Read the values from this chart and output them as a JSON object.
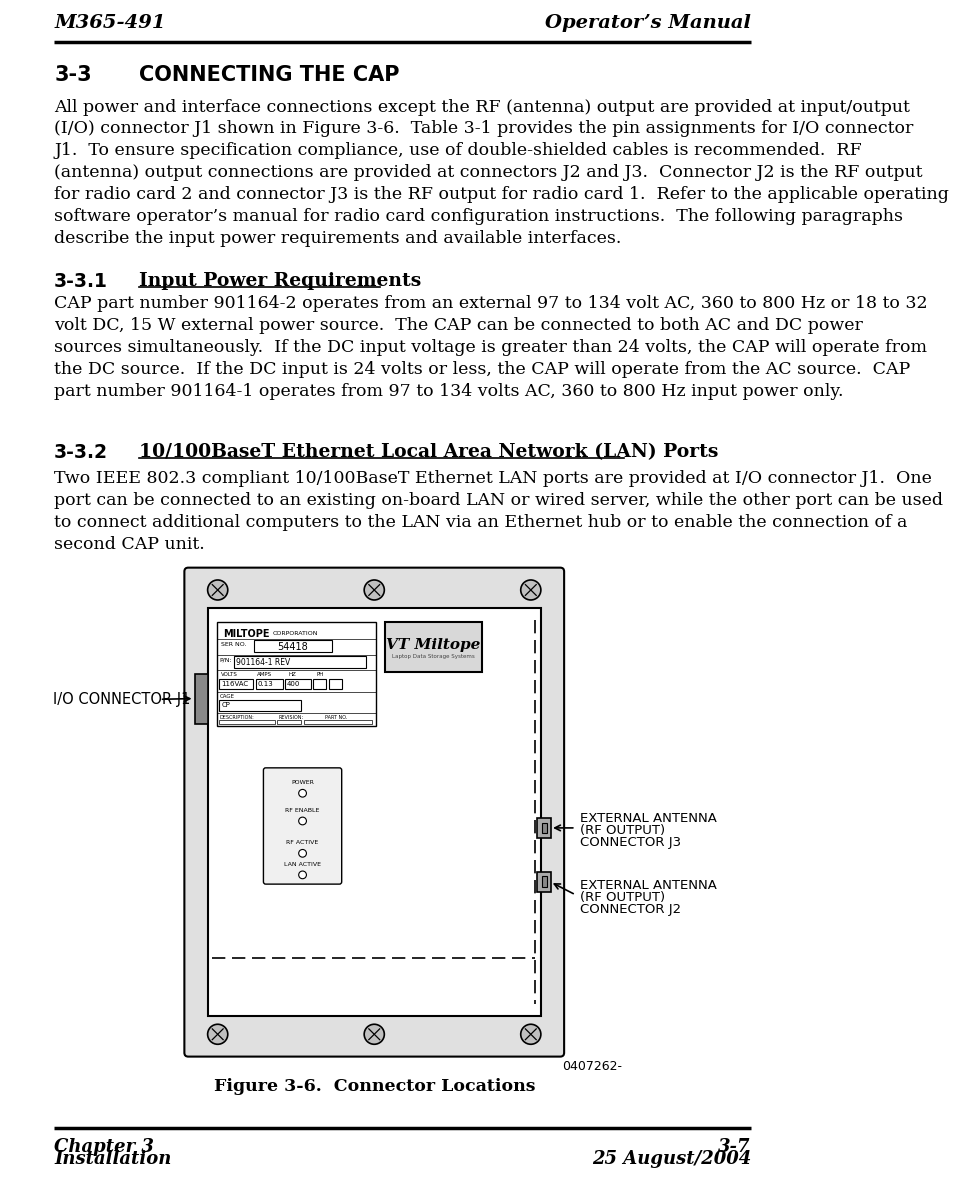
{
  "header_left": "M365-491",
  "header_right": "Operator’s Manual",
  "footer_left_line1": "Chapter 3",
  "footer_left_line2": "Installation",
  "footer_right_line1": "3-7",
  "footer_right_line2": "25 August/2004",
  "body_text_1": "All power and interface connections except the RF (antenna) output are provided at input/output\n(I/O) connector J1 shown in Figure 3-6.  Table 3-1 provides the pin assignments for I/O connector\nJ1.  To ensure specification compliance, use of double-shielded cables is recommended.  RF\n(antenna) output connections are provided at connectors J2 and J3.  Connector J2 is the RF output\nfor radio card 2 and connector J3 is the RF output for radio card 1.  Refer to the applicable operating\nsoftware operator’s manual for radio card configuration instructions.  The following paragraphs\ndescribe the input power requirements and available interfaces.",
  "subsection_1_number": "3-3.1",
  "subsection_1_title": "Input Power Requirements",
  "body_text_2": "CAP part number 901164-2 operates from an external 97 to 134 volt AC, 360 to 800 Hz or 18 to 32\nvolt DC, 15 W external power source.  The CAP can be connected to both AC and DC power\nsources simultaneously.  If the DC input voltage is greater than 24 volts, the CAP will operate from\nthe DC source.  If the DC input is 24 volts or less, the CAP will operate from the AC source.  CAP\npart number 901164-1 operates from 97 to 134 volts AC, 360 to 800 Hz input power only.",
  "subsection_2_number": "3-3.2",
  "subsection_2_title": "10/100BaseT Ethernet Local Area Network (LAN) Ports",
  "body_text_3": "Two IEEE 802.3 compliant 10/100BaseT Ethernet LAN ports are provided at I/O connector J1.  One\nport can be connected to an existing on-board LAN or wired server, while the other port can be used\nto connect additional computers to the LAN via an Ethernet hub or to enable the connection of a\nsecond CAP unit.",
  "figure_caption": "Figure 3-6.  Connector Locations",
  "figure_number": "0407262-",
  "io_label": "I/O CONNECTOR J1",
  "j3_label_line1": "EXTERNAL ANTENNA",
  "j3_label_line2": "(RF OUTPUT)",
  "j3_label_line3": "CONNECTOR J3",
  "j2_label_line1": "EXTERNAL ANTENNA",
  "j2_label_line2": "(RF OUTPUT)",
  "j2_label_line3": "CONNECTOR J2",
  "bg_color": "#ffffff",
  "text_color": "#000000"
}
